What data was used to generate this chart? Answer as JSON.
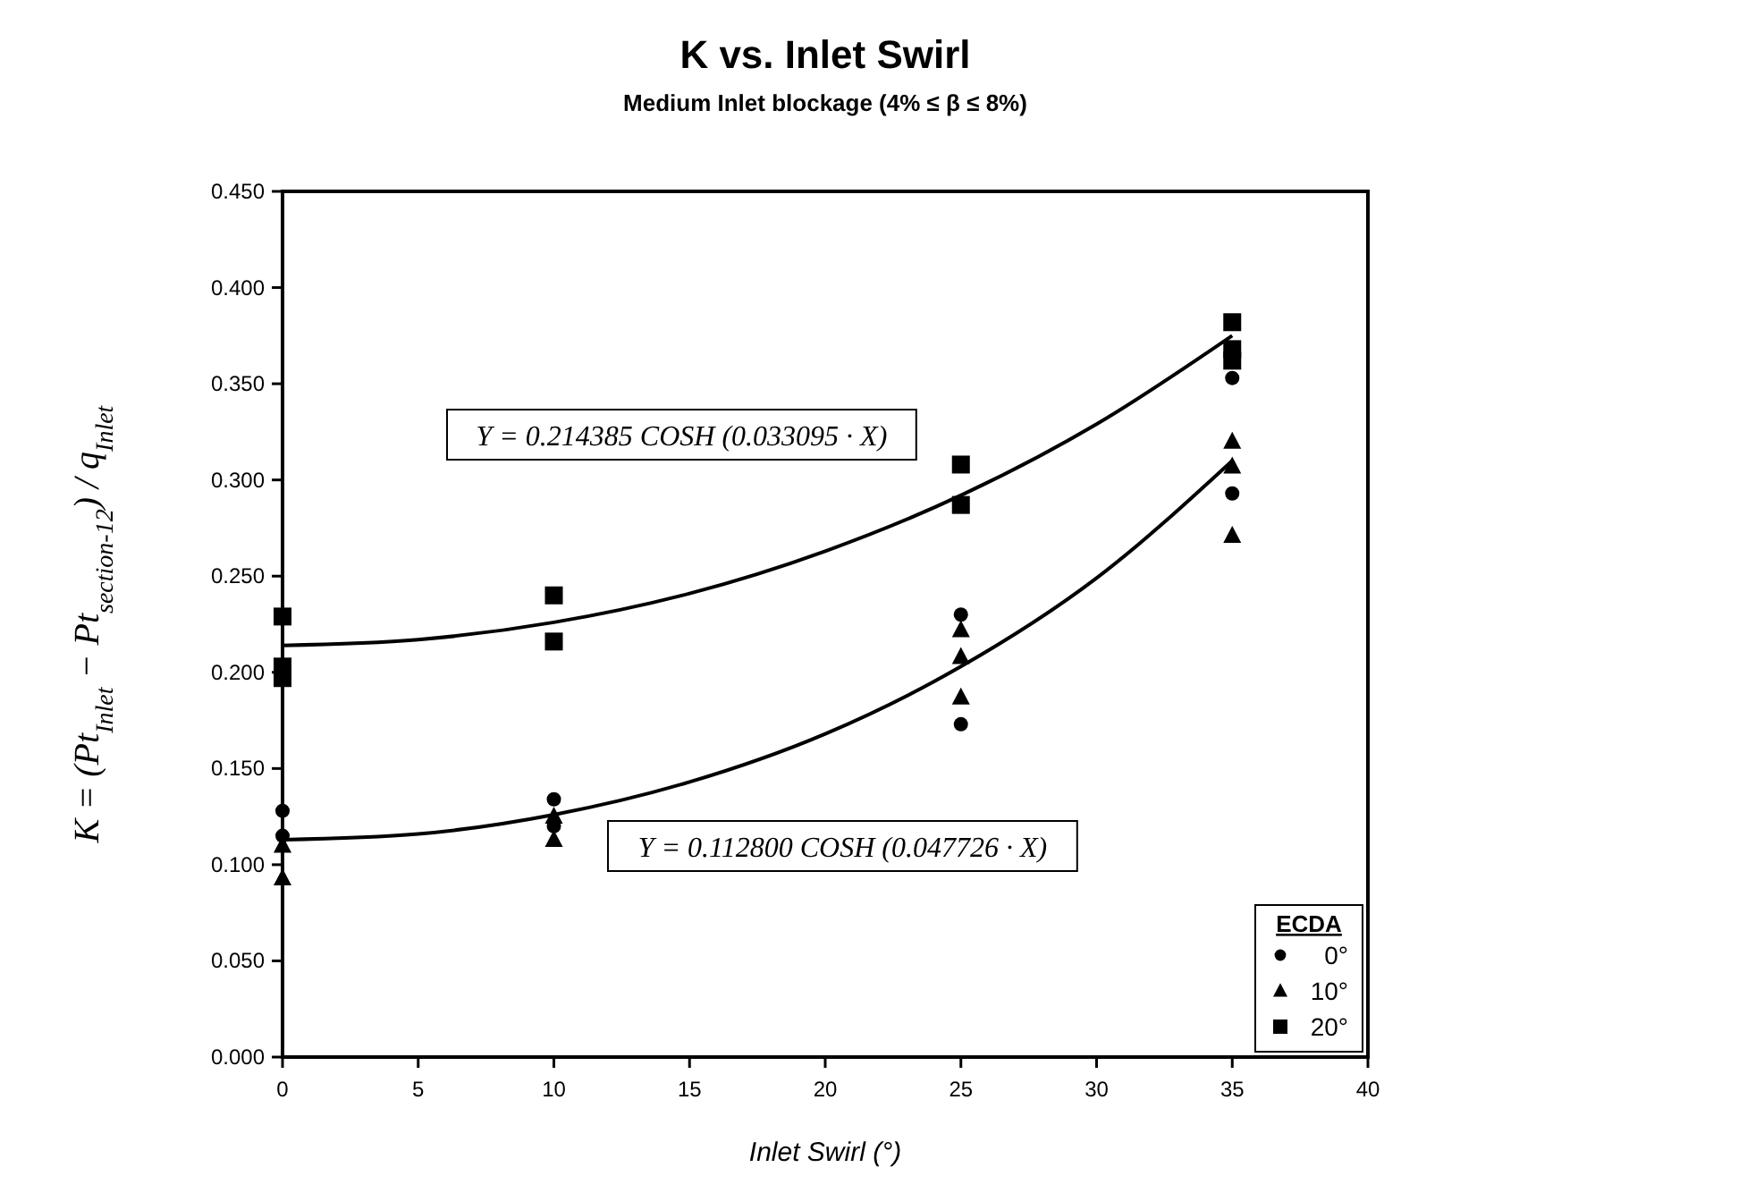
{
  "chart_data": {
    "type": "scatter",
    "title": "K vs. Inlet Swirl",
    "subtitle": "Medium Inlet blockage (4% ≤ β ≤ 8%)",
    "xlabel": "Inlet Swirl (°)",
    "ylabel": "K = (Pt$_{Inlet}$ − Pt$_{section-12}$) / q$_{Inlet}$",
    "legend_title": "ECDA",
    "legend": "bottom right",
    "grid": false,
    "xlim": [
      0,
      40
    ],
    "xticks": [
      0,
      5,
      10,
      15,
      20,
      25,
      30,
      35,
      40
    ],
    "ylim": [
      0,
      0.45
    ],
    "yticks": [
      {
        "value": 0,
        "label": "0.000"
      },
      {
        "value": 0.05,
        "label": "0.050"
      },
      {
        "value": 0.1,
        "label": "0.100"
      },
      {
        "value": 0.15,
        "label": "0.150"
      },
      {
        "value": 0.2,
        "label": "0.200"
      },
      {
        "value": 0.25,
        "label": "0.250"
      },
      {
        "value": 0.3,
        "label": "0.300"
      },
      {
        "value": 0.35,
        "label": "0.350"
      },
      {
        "value": 0.4,
        "label": "0.400"
      },
      {
        "value": 0.45,
        "label": "0.450"
      }
    ],
    "series": [
      {
        "name": "0°",
        "marker": "circle",
        "color": "#000000",
        "x": [
          0,
          0,
          10,
          10,
          25,
          25,
          35,
          35
        ],
        "values": [
          0.128,
          0.115,
          0.134,
          0.12,
          0.23,
          0.173,
          0.353,
          0.293
        ]
      },
      {
        "name": "10°",
        "marker": "triangle",
        "color": "#000000",
        "x": [
          0,
          0,
          10,
          10,
          25,
          25,
          25,
          35,
          35,
          35
        ],
        "values": [
          0.11,
          0.093,
          0.125,
          0.113,
          0.222,
          0.208,
          0.187,
          0.32,
          0.307,
          0.271
        ]
      },
      {
        "name": "20°",
        "marker": "square",
        "color": "#000000",
        "x": [
          0,
          0,
          0,
          10,
          10,
          25,
          25,
          35,
          35,
          35
        ],
        "values": [
          0.229,
          0.203,
          0.197,
          0.24,
          0.216,
          0.308,
          0.287,
          0.382,
          0.368,
          0.362
        ]
      },
      {
        "type": "line",
        "marker": "none",
        "line_style": "solid",
        "color": "#000000",
        "x": [
          0,
          5,
          10,
          15,
          20,
          25,
          30,
          35
        ],
        "values": [
          0.214,
          0.217,
          0.226,
          0.241,
          0.263,
          0.292,
          0.329,
          0.375
        ]
      },
      {
        "type": "line",
        "marker": "none",
        "line_style": "solid",
        "color": "#000000",
        "x": [
          0,
          5,
          10,
          15,
          20,
          25,
          30,
          35
        ],
        "values": [
          0.113,
          0.116,
          0.126,
          0.143,
          0.168,
          0.203,
          0.249,
          0.31
        ]
      }
    ],
    "annotations": [
      "Y = 0.214385 COSH (0.033095 · X)",
      "Y = 0.112800 COSH (0.047726 · X)"
    ]
  }
}
